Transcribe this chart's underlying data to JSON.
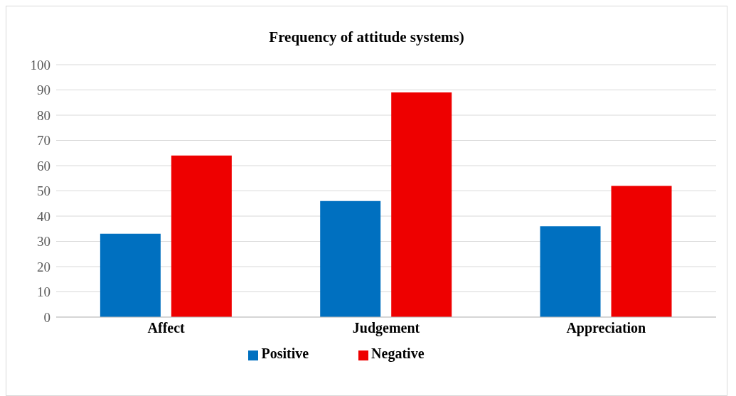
{
  "chart_data": {
    "type": "bar",
    "title": "Frequency of attitude systems)",
    "categories": [
      "Affect",
      "Judgement",
      "Appreciation"
    ],
    "series": [
      {
        "name": "Positive",
        "color": "#0070c0",
        "values": [
          33,
          46,
          36
        ]
      },
      {
        "name": "Negative",
        "color": "#ee0000",
        "values": [
          64,
          89,
          52
        ]
      }
    ],
    "ylim": [
      0,
      100
    ],
    "yticks": [
      0,
      10,
      20,
      30,
      40,
      50,
      60,
      70,
      80,
      90,
      100
    ],
    "grid": "y",
    "legend": "bottom"
  }
}
